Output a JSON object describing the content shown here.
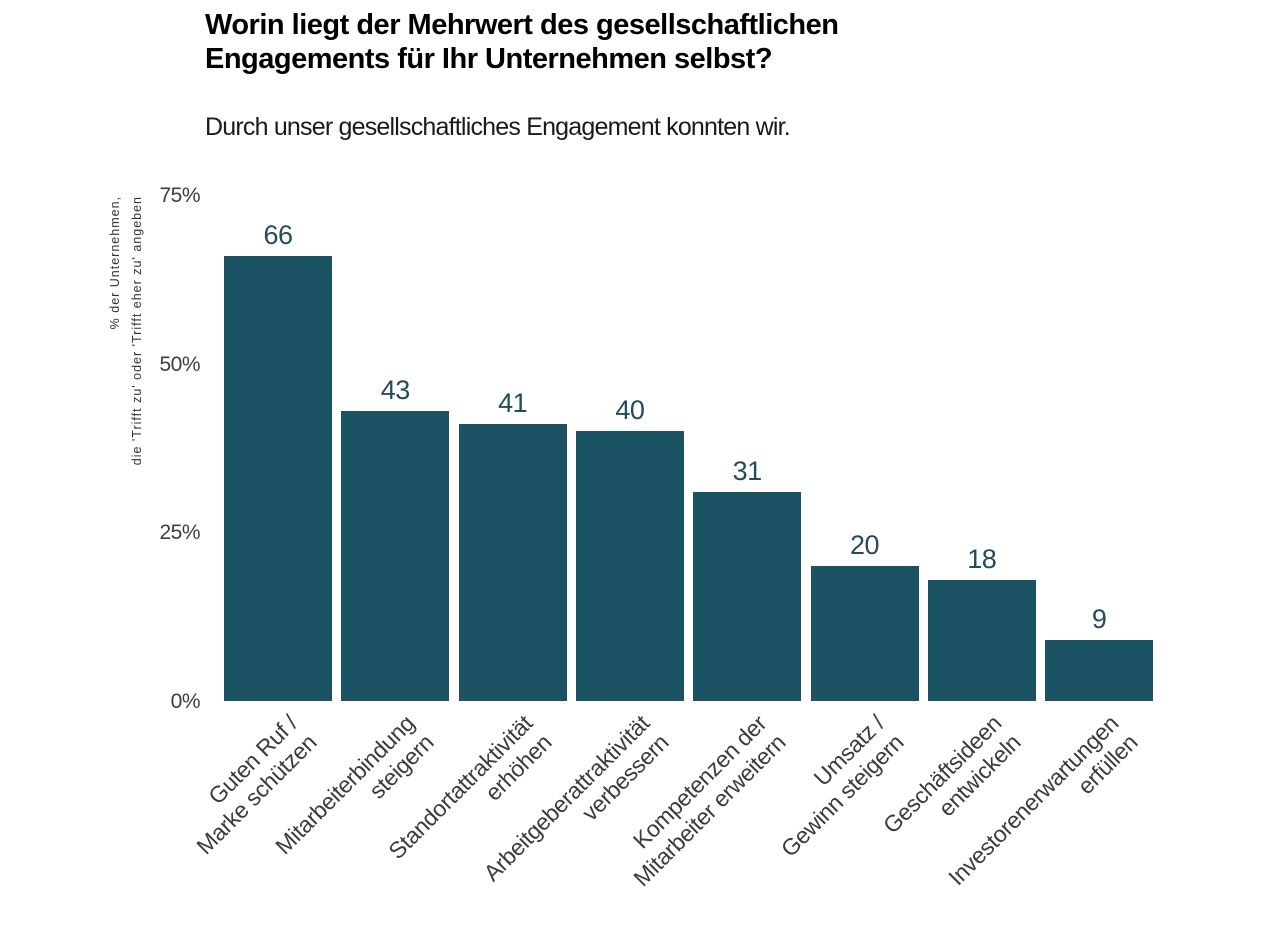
{
  "chart_data": {
    "type": "bar",
    "title": "Worin liegt der Mehrwert des gesellschaftlichen Engagements für Ihr Unternehmen selbst?",
    "title_lines": [
      "Worin liegt der Mehrwert des gesellschaftlichen",
      "Engagements für Ihr Unternehmen selbst?"
    ],
    "subtitle": "Durch unser gesellschaftliches Engagement konnten wir.",
    "categories": [
      "Guten Ruf / Marke schützen",
      "Mitarbeiterbindung steigern",
      "Standortattraktivität erhöhen",
      "Arbeitgeberattraktivität verbessern",
      "Kompetenzen der Mitarbeiter erweitern",
      "Umsatz / Gewinn steigern",
      "Geschäftsideen entwickeln",
      "Investorenerwartungen erfüllen"
    ],
    "category_lines": [
      [
        "Guten Ruf  /",
        "Marke schützen"
      ],
      [
        "Mitarbeiterbindung",
        "steigern"
      ],
      [
        "Standortattraktivität",
        "erhöhen"
      ],
      [
        "Arbeitgeberattraktivität",
        "verbessern"
      ],
      [
        "Kompetenzen der",
        "Mitarbeiter erweitern"
      ],
      [
        "Umsatz /",
        "Gewinn steigern"
      ],
      [
        "Geschäftsideen",
        "entwickeln"
      ],
      [
        "Investorenerwartungen",
        "erfüllen"
      ]
    ],
    "values": [
      66,
      43,
      41,
      40,
      31,
      20,
      18,
      9
    ],
    "xlabel": "",
    "ylabel": "% der Unternehmen, die 'Trifft zu' oder 'Trifft eher zu' angeben",
    "ylabel_lines": [
      "% der Unternehmen,",
      "die 'Trifft zu' oder 'Trifft eher zu' angeben"
    ],
    "yticks": [
      0,
      25,
      50,
      75
    ],
    "ytick_labels": [
      "0%",
      "25%",
      "50%",
      "75%"
    ],
    "ylim": [
      0,
      75
    ],
    "grid": false,
    "legend": false,
    "colors": {
      "background": "#ffffff",
      "bar": "#1b5365",
      "value_label": "#254b5c",
      "tick_label": "#3d3d3d",
      "category_label": "#3b3b3b",
      "title": "#000000",
      "subtitle": "#1a1a1a",
      "ylabel": "#333333"
    }
  }
}
